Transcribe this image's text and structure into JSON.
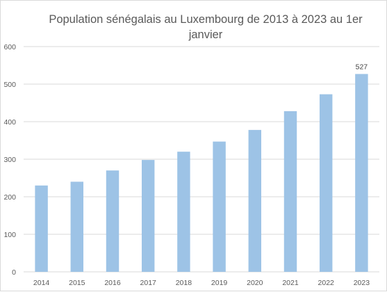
{
  "chart_data": {
    "type": "bar",
    "title": "Population sénégalais au Luxembourg de 2013 à 2023 au 1er janvier",
    "categories": [
      "2014",
      "2015",
      "2016",
      "2017",
      "2018",
      "2019",
      "2020",
      "2021",
      "2022",
      "2023"
    ],
    "values": [
      230,
      240,
      270,
      298,
      320,
      347,
      378,
      428,
      473,
      527
    ],
    "data_labels": [
      null,
      null,
      null,
      null,
      null,
      null,
      null,
      null,
      null,
      "527"
    ],
    "ylim": [
      0,
      600
    ],
    "yticks": [
      0,
      100,
      200,
      300,
      400,
      500,
      600
    ],
    "grid": true,
    "legend": "none",
    "xlabel": "",
    "ylabel": "",
    "bar_color": "#9dc3e6",
    "grid_color": "#d9d9d9"
  }
}
